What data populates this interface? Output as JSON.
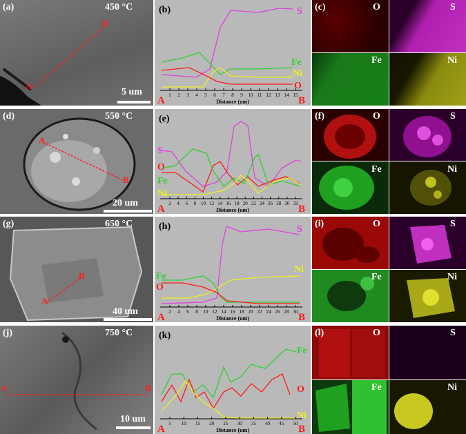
{
  "rows": [
    {
      "sem": {
        "label": "(a)",
        "temp": "450 °C",
        "scale": "5 um",
        "pa": "A",
        "pb": "B"
      },
      "profile": {
        "label": "(b)",
        "xlabel": "Distance (um)",
        "a": "A",
        "b": "B",
        "ticks": [
          "1",
          "2",
          "3",
          "4",
          "5",
          "6",
          "7",
          "8",
          "9",
          "10",
          "11",
          "12",
          "13",
          "14",
          "15"
        ],
        "elements": [
          {
            "name": "S",
            "color": "#e040e0"
          },
          {
            "name": "Fe",
            "color": "#30d030"
          },
          {
            "name": "Ni",
            "color": "#f0f020"
          },
          {
            "name": "O",
            "color": "#ff1a1a"
          }
        ]
      },
      "maps": {
        "label": "(c)",
        "o": "O",
        "s": "S",
        "fe": "Fe",
        "ni": "Ni"
      }
    },
    {
      "sem": {
        "label": "(d)",
        "temp": "550 °C",
        "scale": "20 um",
        "pa": "A",
        "pb": "B"
      },
      "profile": {
        "label": "(e)",
        "xlabel": "Distance (um)",
        "a": "A",
        "b": "B",
        "ticks": [
          "2",
          "4",
          "6",
          "8",
          "10",
          "12",
          "14",
          "16",
          "18",
          "20",
          "22",
          "24",
          "26",
          "28",
          "30",
          "32"
        ],
        "elements": [
          {
            "name": "S",
            "color": "#e040e0"
          },
          {
            "name": "O",
            "color": "#ff1a1a"
          },
          {
            "name": "Fe",
            "color": "#30d030"
          },
          {
            "name": "Ni",
            "color": "#f0f020"
          }
        ]
      },
      "maps": {
        "label": "(f)",
        "o": "O",
        "s": "S",
        "fe": "Fe",
        "ni": "Ni"
      }
    },
    {
      "sem": {
        "label": "(g)",
        "temp": "650 °C",
        "scale": "40 um",
        "pa": "A",
        "pb": "B"
      },
      "profile": {
        "label": "(h)",
        "xlabel": "Distance (um)",
        "a": "A",
        "b": "B",
        "ticks": [
          "2",
          "4",
          "6",
          "8",
          "10",
          "12",
          "14",
          "16",
          "18",
          "20",
          "22",
          "24",
          "26",
          "28",
          "30"
        ],
        "elements": [
          {
            "name": "S",
            "color": "#e040e0"
          },
          {
            "name": "Ni",
            "color": "#f0f020"
          },
          {
            "name": "Fe",
            "color": "#30d030"
          },
          {
            "name": "O",
            "color": "#ff1a1a"
          }
        ]
      },
      "maps": {
        "label": "(i)",
        "o": "O",
        "s": "S",
        "fe": "Fe",
        "ni": "Ni"
      }
    },
    {
      "sem": {
        "label": "(j)",
        "temp": "750 °C",
        "scale": "10 um",
        "pa": "A",
        "pb": "B"
      },
      "profile": {
        "label": "(k)",
        "xlabel": "Distance (um)",
        "a": "A",
        "b": "B",
        "ticks": [
          "5",
          "10",
          "15",
          "20",
          "25",
          "30",
          "35",
          "40",
          "45",
          "50"
        ],
        "elements": [
          {
            "name": "Fe",
            "color": "#30d030"
          },
          {
            "name": "O",
            "color": "#ff1a1a"
          },
          {
            "name": "Ni",
            "color": "#f0f020"
          }
        ]
      },
      "maps": {
        "label": "(l)",
        "o": "O",
        "s": "S",
        "fe": "Fe",
        "ni": "Ni"
      }
    }
  ]
}
